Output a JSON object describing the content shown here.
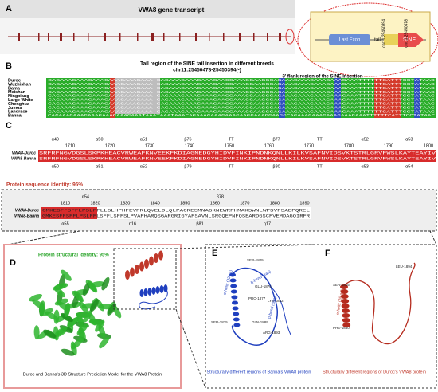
{
  "A": {
    "label": "A",
    "title": "VWA8 gene transcript",
    "last_exon": "Last Exon",
    "tail": "tail",
    "sine": "SINE",
    "coord1": "chr11:25450394",
    "coord2": "chr11:25450478"
  },
  "B": {
    "label": "B",
    "title": "Tail region of the SINE tail insertion in different breeds",
    "region": "chr11:25450478-25450394(-)",
    "flank": "3' flank region of the SINE insertion",
    "breeds": [
      "Duroc",
      "Wuzhishan",
      "Bama",
      "Meishan",
      "Ningxiang",
      "Large White",
      "Chenghua",
      "Juema",
      "Landrace",
      "Banna"
    ],
    "sequences": [
      "CAGAAAGAAAGAAAGAAAGAAAGAAA          CAGAAAGAAAGAAAGAAGGAAAGGAAGGCAGAAAGAAAGAAAGAAAGAAATTTTTTCATTTCCTATAAC",
      "CAGAAAGAAAGAAAGAAAGAAAGAAA          CAGAAAGAAAGAAAGAAGGAAAGGAAGGCAGAAAGAAAGAAAGAAAGAAATTTTTTCATTTCCTATAAC",
      "CAGAAAGAAAGAAAGAAAGAAAGAAA          CAGAAAGAAAGAAAGAAGGAAAGGAAGGCAGAAAGAAAGAAAGAAAGAAATTTTTTCATTTCCTATAAC",
      "CAGAAAGAAAGAAAGAAAGAAAGAAA          CAGAAAGAAAGAAAGAAGGAAAGGAAGGCAGAAAGAAAGAAAGAAAGAAATTTTTTCATTTCCTATAAC",
      "CAGAAAGAAAGAAAGAAAGAAAGAAA          CAGAAAGAAAGAAAGAAGGAAAGGAAGGCAGAAAGAAAGAAAGAAAGAAATTTTTTCATTTCCTATAAC",
      "CAGAAAGAAAGAAAGAAAGAAAGAAA          CAGAAAGAAAGAAAGAAGGAAAGGAAGGCAGAAAGAAAGAAAGAAAGAAATTTTTTCATTTCCTATAAC",
      "CAGAAAGAAAGAAAGAAAGAAAGAAA          CAGAAAGAAAGAAAGAAGGAAAGGAAGGCAGAAAGAAAGAAAGAAAGAAATTTTTTCATTTCCTATAAC",
      "CAGAAAGAAAGAAAGAAAGAAAGAAA          CAGAAAGAAAGAAAGAAGGAAAGGAAGGCAGAAAGAAAGAAAGAAAGAAATTTTTTCATTTCCTATAAC",
      "CAGAAAGAAAGAAAGAAAGAAAGAAA          CAGAAAGAAAGAAAGAAGGAAAGGAAGGCAGAAAGAAAGAAAGAAAGAAATTTTTTCATTTCCTATAAC",
      "CAGAAAGAAAGAAAGAAAGAAAGAAATAAATAAATAAACAGAAAGAAAGAAAGAAGGAAAGGAAGGCAGAAAGAAAGAAAGAAAGAAATTTTTTCATTTCCTATAAC"
    ]
  },
  "C": {
    "label": "C",
    "row1": {
      "numbers": [
        1710,
        1720,
        1730,
        1740,
        1750,
        1760,
        1770,
        1780,
        1790,
        1800
      ],
      "top_ss": [
        "α49",
        "α50",
        "α51",
        "β76",
        "TT",
        "β77",
        "TT",
        "α52",
        "α53"
      ],
      "bottom_ss": [
        "α50",
        "α51",
        "α52",
        "β79",
        "TT",
        "β80",
        "TT",
        "α53",
        "α54"
      ],
      "seqs": [
        {
          "name": "VWA8-Duroc",
          "seq": "SRFRFNGVDGSLSKPKHEACVRWEAFKNVEEKFKDIAGNEDGYHIDVFINKIPNDNKQNLLKILKVSAFNVIDSVKTSTRLGRVFWSLKAYTEAYIV"
        },
        {
          "name": "VWA8-Banna",
          "seq": "SRFRFNGVDGSLSKPKHEACVRWEAFKNVEEKFKDIAGNEDGYHIDVFINKIPNDNKQNLLKILKVSAFNVIDSVKTSTRLGRVFWSLKAYTEAYIV"
        }
      ]
    },
    "identity": "Protein sequence identity: 96%",
    "row2": {
      "numbers": [
        1810,
        1820,
        1830,
        1840,
        1850,
        1860,
        1870,
        1880,
        1890
      ],
      "top_ss": [
        "α54",
        "β78"
      ],
      "bottom_ss": [
        "α55",
        "η16",
        "β81",
        "η17"
      ],
      "seqs": [
        {
          "name": "VWA8-Duroc",
          "seq": "GMKESFFSFFLPSLFFLLGLHPHFEVPRLQVELDLQLPACRESMNAGKNEWRPHMAKSWNLWPSVFSAEPQREL"
        },
        {
          "name": "VWA8-Banna",
          "seq": "GMKESFFSFFLPSLFFLSFFLSFFSLPVAPHARQSGARGRIGYAPSAVNLSRGQEPNFQSEARDGSCPVEMDAGQIRFR"
        }
      ]
    }
  },
  "D": {
    "label": "D",
    "identity": "Protein structural identity: 95%",
    "caption": "Duroc and Banna's 3D Structure Prediction Model for the VWA8 Protein"
  },
  "E": {
    "label": "E",
    "residues": [
      "SER-1805",
      "GLU-1876",
      "PRO-1877",
      "LYS-1882",
      "GLN-1889",
      "ARG-1893",
      "SER-1875"
    ],
    "helix": "α-helix (33 aa)",
    "bend1": "η-bend (4aa)",
    "bend2": "β-bend (3aa)",
    "caption": "Structurally different regions of Banna's VWA8 protein"
  },
  "F": {
    "label": "F",
    "residues": [
      "LEU-1894",
      "SER-1805",
      "PHE-1830"
    ],
    "helix": "α-helix (26 aa)",
    "caption": "Structurally different regions of Duroc's VWA8 protein"
  }
}
